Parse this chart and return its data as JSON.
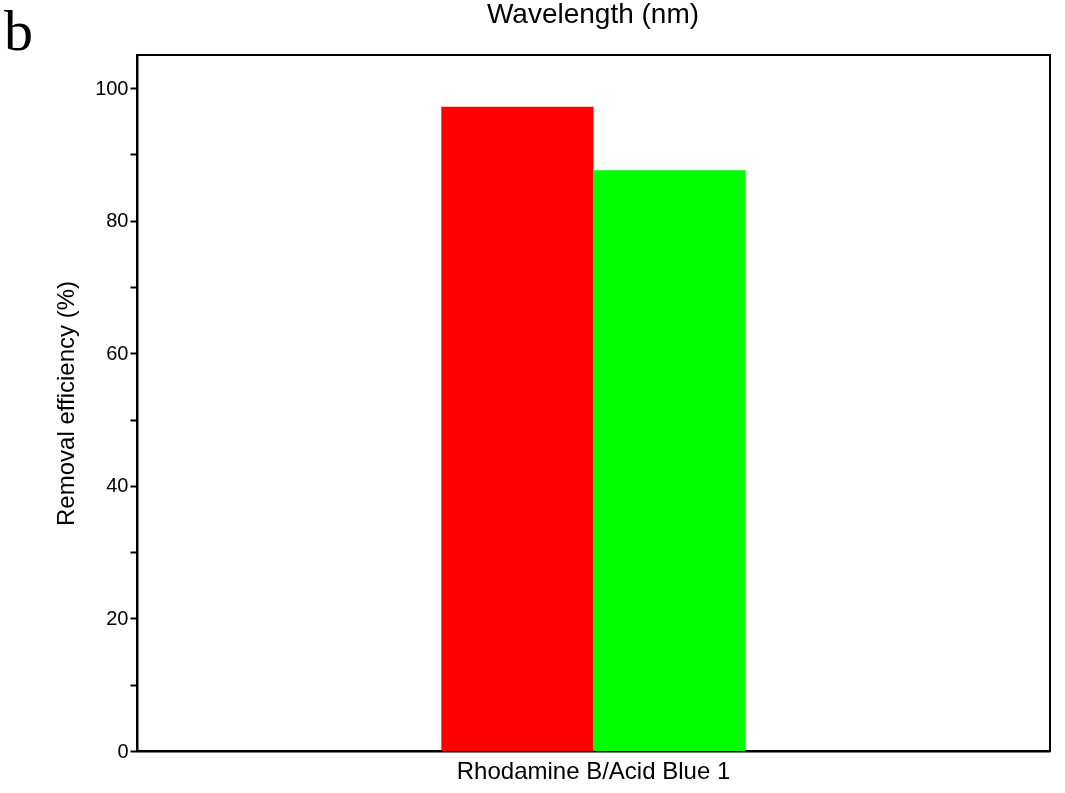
{
  "chart_data": {
    "type": "bar",
    "ylabel": "Removal efficiency (%)",
    "categories": [
      "Rhodamine B/Acid Blue 1"
    ],
    "series": [
      {
        "color": "#ff0000",
        "values": [
          97.2
        ]
      },
      {
        "color": "#00ff00",
        "values": [
          87.6
        ]
      }
    ],
    "ylim": [
      0,
      105
    ],
    "yticks": [
      0,
      {
        "value": 10,
        "label": null
      },
      20,
      {
        "value": 30,
        "label": null
      },
      40,
      {
        "value": 50,
        "label": null
      },
      60,
      {
        "value": 70,
        "label": null
      },
      80,
      {
        "value": 90,
        "label": null
      },
      100
    ],
    "grid": false,
    "legend": false,
    "annotations": [
      "Wavelength (nm)",
      "b"
    ]
  }
}
